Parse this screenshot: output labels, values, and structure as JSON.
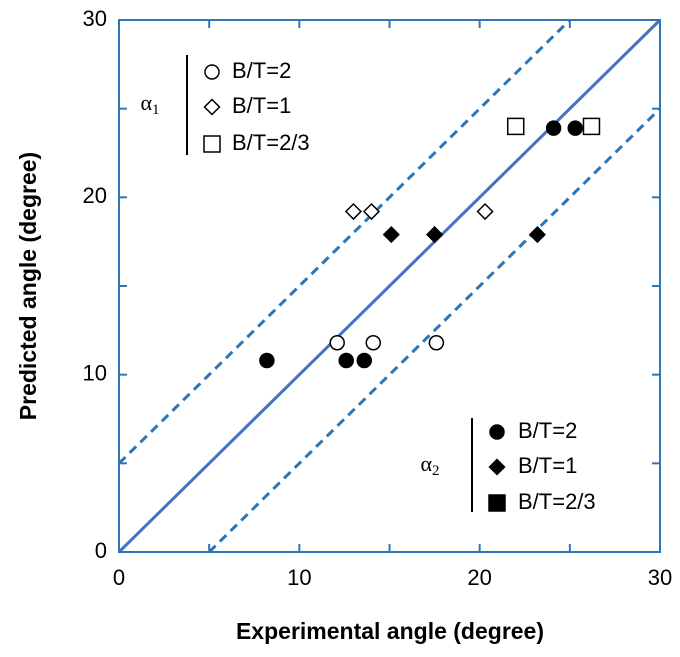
{
  "chart_data": {
    "type": "scatter",
    "xlabel": "Experimental angle (degree)",
    "ylabel": "Predicted angle (degree)",
    "xlim": [
      0,
      30
    ],
    "ylim": [
      0,
      30
    ],
    "xticks": [
      0,
      10,
      20,
      30
    ],
    "yticks": [
      0,
      10,
      20,
      30
    ],
    "xminor": [
      5,
      15,
      25
    ],
    "yminor": [
      5,
      15,
      25
    ],
    "frame_color": "#2e75b6",
    "lines": [
      {
        "x": [
          0,
          30
        ],
        "y": [
          0,
          30
        ],
        "color": "#4472c4",
        "dashed": false
      },
      {
        "x": [
          0,
          25
        ],
        "y": [
          5,
          30
        ],
        "color": "#2e75b6",
        "dashed": true
      },
      {
        "x": [
          5,
          30
        ],
        "y": [
          0,
          25
        ],
        "color": "#2e75b6",
        "dashed": true
      }
    ],
    "groups": [
      {
        "symbol": "α",
        "sub": "1",
        "corner": "upper left",
        "series": [
          {
            "name": "B/T=2",
            "marker": "circle",
            "filled": false,
            "color": "#000000",
            "x": [
              12.1,
              14.1,
              17.6
            ],
            "values": [
              11.8,
              11.8,
              11.8
            ]
          },
          {
            "name": "B/T=1",
            "marker": "diamond",
            "filled": false,
            "color": "#000000",
            "x": [
              13.0,
              14.0,
              20.3
            ],
            "values": [
              19.2,
              19.2,
              19.2
            ]
          },
          {
            "name": "B/T=2/3",
            "marker": "square",
            "filled": false,
            "color": "#000000",
            "x": [
              22.0,
              26.2
            ],
            "values": [
              24.0,
              24.0
            ]
          }
        ]
      },
      {
        "symbol": "α",
        "sub": "2",
        "corner": "lower right",
        "series": [
          {
            "name": "B/T=2",
            "marker": "circle",
            "filled": true,
            "color": "#000000",
            "x": [
              8.2,
              12.6,
              13.6,
              24.1,
              25.3
            ],
            "values": [
              10.8,
              10.8,
              10.8,
              23.9,
              23.9
            ]
          },
          {
            "name": "B/T=1",
            "marker": "diamond",
            "filled": true,
            "color": "#000000",
            "x": [
              15.1,
              17.5,
              23.2
            ],
            "values": [
              17.9,
              17.9,
              17.9
            ]
          },
          {
            "name": "B/T=2/3",
            "marker": "square",
            "filled": true,
            "color": "#000000",
            "x": [],
            "values": []
          }
        ]
      }
    ]
  }
}
